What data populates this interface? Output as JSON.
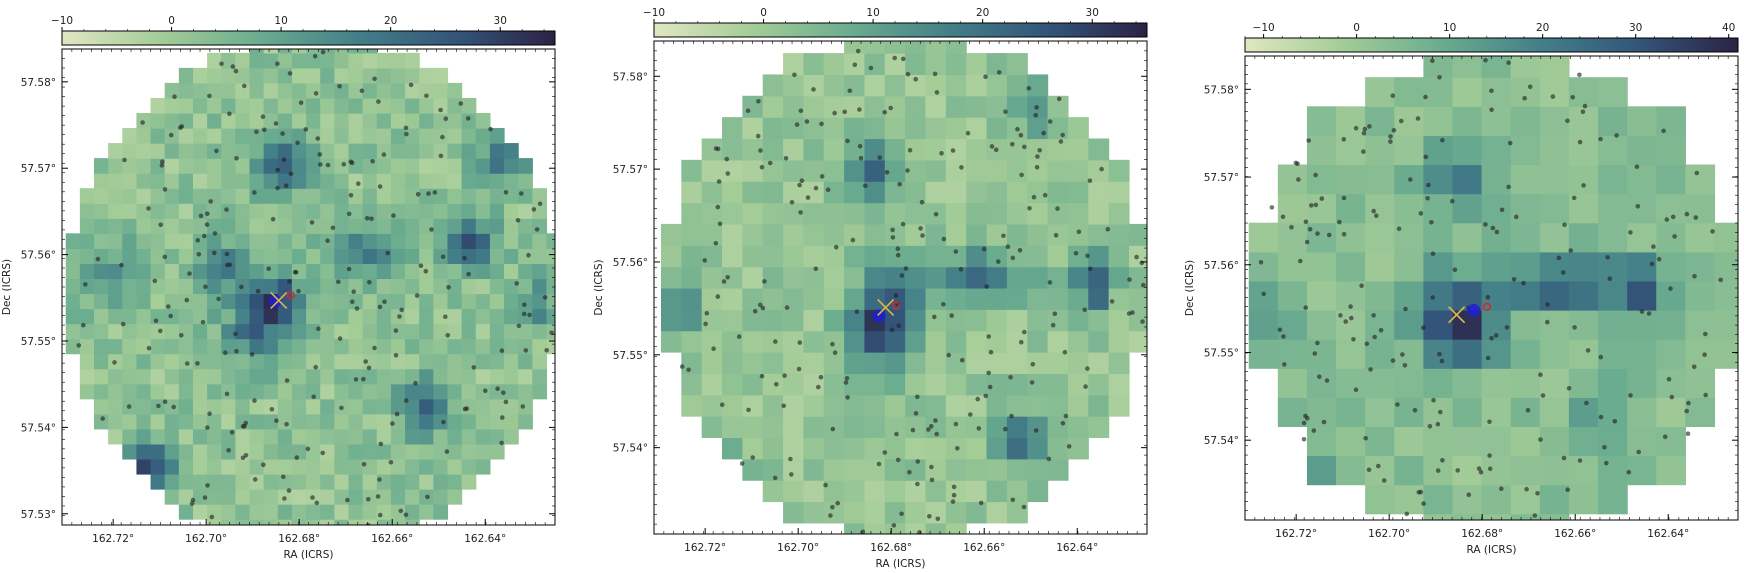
{
  "colors": {
    "colormap": [
      "#e0e7c2",
      "#a3cc97",
      "#6aac8f",
      "#437f88",
      "#33557a",
      "#2c2344"
    ],
    "points": "#222222",
    "blue_marker": "#1f1fd6",
    "yellow_marker": "#d9b84a",
    "red_marker": "#d42a2a",
    "axis": "#000000"
  },
  "chart_data": [
    {
      "type": "heatmap",
      "xlabel": "RA (ICRS)",
      "ylabel": "Dec (ICRS)",
      "x_ticks": [
        "162.72°",
        "162.70°",
        "162.68°",
        "162.66°",
        "162.64°"
      ],
      "x_tick_values": [
        162.72,
        162.7,
        162.68,
        162.66,
        162.64
      ],
      "y_ticks": [
        "57.53°",
        "57.54°",
        "57.55°",
        "57.56°",
        "57.57°",
        "57.58°"
      ],
      "y_tick_values": [
        57.53,
        57.54,
        57.55,
        57.56,
        57.57,
        57.58
      ],
      "xlim": [
        162.731,
        162.625
      ],
      "ylim": [
        57.5287,
        57.5838
      ],
      "colorbar_ticks": [
        "−10",
        "0",
        "10",
        "20",
        "30"
      ],
      "colorbar_tick_values": [
        -10,
        0,
        10,
        20,
        30
      ],
      "colorbar_range": [
        -10,
        35
      ],
      "grid": {
        "nx": 35,
        "ny": 34,
        "center": [
          162.677,
          57.5555
        ],
        "rx": 0.0532,
        "ry": 0.0296
      },
      "peaks": [
        {
          "ra": 162.6845,
          "dec": 57.5548,
          "value": 24,
          "sra": 0.004,
          "sdec": 0.0022
        },
        {
          "ra": 162.6835,
          "dec": 57.5705,
          "value": 22,
          "sra": 0.004,
          "sdec": 0.0025
        },
        {
          "ra": 162.7125,
          "dec": 57.5355,
          "value": 33,
          "sra": 0.0032,
          "sdec": 0.0018
        },
        {
          "ra": 162.6435,
          "dec": 57.5615,
          "value": 23,
          "sra": 0.004,
          "sdec": 0.0022
        },
        {
          "ra": 162.6535,
          "dec": 57.5425,
          "value": 21,
          "sra": 0.0035,
          "sdec": 0.0022
        },
        {
          "ra": 162.6895,
          "dec": 57.551,
          "value": 16,
          "sra": 0.005,
          "sdec": 0.0028
        },
        {
          "ra": 162.6655,
          "dec": 57.5605,
          "value": 14,
          "sra": 0.006,
          "sdec": 0.002
        },
        {
          "ra": 162.6965,
          "dec": 57.5585,
          "value": 13,
          "sra": 0.004,
          "sdec": 0.0025
        },
        {
          "ra": 162.722,
          "dec": 57.558,
          "value": 11,
          "sra": 0.005,
          "sdec": 0.003
        },
        {
          "ra": 162.6365,
          "dec": 57.5715,
          "value": 16,
          "sra": 0.004,
          "sdec": 0.0025
        },
        {
          "ra": 162.629,
          "dec": 57.5545,
          "value": 12,
          "sra": 0.003,
          "sdec": 0.0025
        }
      ],
      "baseline": 2,
      "noise_amplitude": 5,
      "markers": {
        "blue": [
          162.6852,
          57.5546
        ],
        "yellow": [
          162.6844,
          57.5547
        ],
        "red": [
          162.6818,
          57.5553
        ]
      },
      "n_points": 240,
      "seed": 11
    },
    {
      "type": "heatmap",
      "xlabel": "RA (ICRS)",
      "ylabel": "Dec (ICRS)",
      "x_ticks": [
        "162.72°",
        "162.70°",
        "162.68°",
        "162.66°",
        "162.64°"
      ],
      "x_tick_values": [
        162.72,
        162.7,
        162.68,
        162.66,
        162.64
      ],
      "y_ticks": [
        "57.54°",
        "57.55°",
        "57.56°",
        "57.57°",
        "57.58°"
      ],
      "y_tick_values": [
        57.54,
        57.55,
        57.56,
        57.57,
        57.58
      ],
      "xlim": [
        162.731,
        162.625
      ],
      "ylim": [
        57.5307,
        57.5838
      ],
      "colorbar_ticks": [
        "−10",
        "0",
        "10",
        "20",
        "30"
      ],
      "colorbar_tick_values": [
        -10,
        0,
        10,
        20,
        30
      ],
      "colorbar_range": [
        -10,
        35
      ],
      "grid": {
        "nx": 24,
        "ny": 24,
        "center": [
          162.677,
          57.5572
        ],
        "rx": 0.0525,
        "ry": 0.0276
      },
      "peaks": [
        {
          "ra": 162.6815,
          "dec": 57.5535,
          "value": 31,
          "sra": 0.005,
          "sdec": 0.0035
        },
        {
          "ra": 162.6835,
          "dec": 57.57,
          "value": 20,
          "sra": 0.004,
          "sdec": 0.0025
        },
        {
          "ra": 162.6365,
          "dec": 57.558,
          "value": 26,
          "sra": 0.003,
          "sdec": 0.0025
        },
        {
          "ra": 162.6625,
          "dec": 57.5585,
          "value": 18,
          "sra": 0.009,
          "sdec": 0.002
        },
        {
          "ra": 162.7165,
          "dec": 57.536,
          "value": 20,
          "sra": 0.004,
          "sdec": 0.0022
        },
        {
          "ra": 162.653,
          "dec": 57.541,
          "value": 19,
          "sra": 0.004,
          "sdec": 0.0022
        },
        {
          "ra": 162.725,
          "dec": 57.5555,
          "value": 12,
          "sra": 0.003,
          "sdec": 0.003
        },
        {
          "ra": 162.65,
          "dec": 57.5765,
          "value": 10,
          "sra": 0.004,
          "sdec": 0.002
        }
      ],
      "baseline": 1,
      "noise_amplitude": 4,
      "markers": {
        "blue": [
          162.6826,
          57.5542
        ],
        "yellow": [
          162.6812,
          57.5551
        ],
        "red": [
          162.679,
          57.5553
        ]
      },
      "n_points": 230,
      "seed": 23
    },
    {
      "type": "heatmap",
      "xlabel": "RA (ICRS)",
      "ylabel": "Dec (ICRS)",
      "x_ticks": [
        "162.72°",
        "162.70°",
        "162.68°",
        "162.66°",
        "162.64°"
      ],
      "x_tick_values": [
        162.72,
        162.7,
        162.68,
        162.66,
        162.64
      ],
      "y_ticks": [
        "57.54°",
        "57.55°",
        "57.56°",
        "57.57°",
        "57.58°"
      ],
      "y_tick_values": [
        57.54,
        57.55,
        57.56,
        57.57,
        57.58
      ],
      "xlim": [
        162.731,
        162.625
      ],
      "ylim": [
        57.5309,
        57.5838
      ],
      "colorbar_ticks": [
        "−10",
        "0",
        "10",
        "20",
        "30",
        "40"
      ],
      "colorbar_tick_values": [
        -10,
        0,
        10,
        20,
        30,
        40
      ],
      "colorbar_range": [
        -12,
        41
      ],
      "grid": {
        "nx": 17,
        "ny": 17,
        "center": [
          162.677,
          57.5565
        ],
        "rx": 0.0532,
        "ry": 0.0282
      },
      "peaks": [
        {
          "ra": 162.6855,
          "dec": 57.5535,
          "value": 37,
          "sra": 0.006,
          "sdec": 0.0035
        },
        {
          "ra": 162.662,
          "dec": 57.5575,
          "value": 22,
          "sra": 0.012,
          "sdec": 0.0022
        },
        {
          "ra": 162.647,
          "dec": 57.558,
          "value": 24,
          "sra": 0.003,
          "sdec": 0.002
        },
        {
          "ra": 162.684,
          "dec": 57.57,
          "value": 15,
          "sra": 0.006,
          "sdec": 0.003
        },
        {
          "ra": 162.655,
          "dec": 57.542,
          "value": 14,
          "sra": 0.004,
          "sdec": 0.003
        },
        {
          "ra": 162.716,
          "dec": 57.5365,
          "value": 13,
          "sra": 0.003,
          "sdec": 0.002
        },
        {
          "ra": 162.724,
          "dec": 57.5555,
          "value": 10,
          "sra": 0.004,
          "sdec": 0.003
        }
      ],
      "baseline": 3,
      "noise_amplitude": 4,
      "markers": {
        "blue": [
          162.6818,
          57.5548
        ],
        "yellow": [
          162.6855,
          57.5543
        ],
        "red": [
          162.679,
          57.5552
        ]
      },
      "n_points": 200,
      "seed": 37
    }
  ]
}
